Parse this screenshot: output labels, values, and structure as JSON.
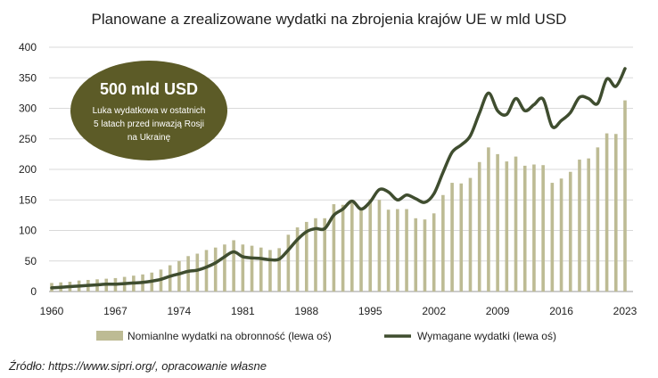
{
  "chart_data": {
    "type": "bar+line",
    "title": "Planowane a zrealizowane wydatki na zbrojenia krajów UE w mld USD",
    "xlabel": "",
    "ylabel": "",
    "ylim": [
      0,
      400
    ],
    "yticks": [
      0,
      50,
      100,
      150,
      200,
      250,
      300,
      350,
      400
    ],
    "xtick_labels": [
      "1960",
      "1967",
      "1974",
      "1981",
      "1988",
      "1995",
      "2002",
      "2009",
      "2016",
      "2023"
    ],
    "x": [
      1960,
      1961,
      1962,
      1963,
      1964,
      1965,
      1966,
      1967,
      1968,
      1969,
      1970,
      1971,
      1972,
      1973,
      1974,
      1975,
      1976,
      1977,
      1978,
      1979,
      1980,
      1981,
      1982,
      1983,
      1984,
      1985,
      1986,
      1987,
      1988,
      1989,
      1990,
      1991,
      1992,
      1993,
      1994,
      1995,
      1996,
      1997,
      1998,
      1999,
      2000,
      2001,
      2002,
      2003,
      2004,
      2005,
      2006,
      2007,
      2008,
      2009,
      2010,
      2011,
      2012,
      2013,
      2014,
      2015,
      2016,
      2017,
      2018,
      2019,
      2020,
      2021,
      2022,
      2023
    ],
    "series": [
      {
        "name": "Nomianlne wydatki na obronność (lewa oś)",
        "type": "bar",
        "color": "#bdbb94",
        "values": [
          14,
          15,
          16,
          18,
          19,
          20,
          21,
          22,
          24,
          26,
          28,
          31,
          36,
          43,
          50,
          58,
          62,
          68,
          72,
          77,
          84,
          77,
          75,
          72,
          68,
          71,
          93,
          105,
          114,
          120,
          120,
          143,
          142,
          145,
          135,
          151,
          150,
          134,
          135,
          135,
          120,
          118,
          128,
          158,
          178,
          177,
          186,
          212,
          236,
          225,
          213,
          221,
          206,
          208,
          207,
          178,
          185,
          196,
          216,
          218,
          236,
          259,
          258,
          313
        ]
      },
      {
        "name": "Wymagane wydatki (lewa oś)",
        "type": "line",
        "color": "#3f4d2f",
        "values": [
          6,
          7,
          8,
          9,
          10,
          11,
          12,
          12,
          13,
          14,
          15,
          17,
          20,
          25,
          29,
          33,
          35,
          40,
          47,
          57,
          65,
          57,
          55,
          54,
          52,
          53,
          68,
          85,
          98,
          103,
          103,
          125,
          135,
          148,
          135,
          147,
          167,
          163,
          150,
          158,
          152,
          146,
          160,
          195,
          228,
          240,
          255,
          292,
          325,
          296,
          290,
          316,
          296,
          306,
          315,
          270,
          280,
          293,
          318,
          316,
          308,
          348,
          336,
          365
        ]
      }
    ],
    "legend": "bottom",
    "annotation": {
      "headline": "500 mld USD",
      "text_lines": [
        "Luka wydatkowa w ostatnich",
        "5 latach  przed inwazją Rosji",
        "na Ukrainę"
      ],
      "color": "#5c5b27"
    }
  },
  "source": "Źródło: https://www.sipri.org/, opracowanie własne"
}
